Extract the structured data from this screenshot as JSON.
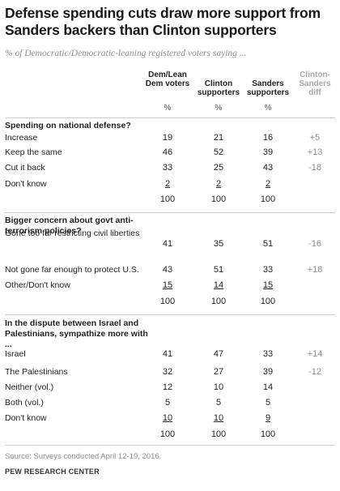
{
  "title": "Defense spending cuts draw more support from Sanders backers than Clinton supporters",
  "subtitle": "% of Democratic/Democratic-leaning registered voters saying ...",
  "columns": [
    {
      "label": "Dem/Lean Dem voters"
    },
    {
      "label": "Clinton supporters"
    },
    {
      "label": "Sanders supporters"
    },
    {
      "label": "Clinton-Sanders diff"
    }
  ],
  "pct_label": "%",
  "sections": [
    {
      "title": "Spending on national defense?",
      "rows": [
        {
          "label": "Increase",
          "values": [
            "19",
            "21",
            "16"
          ],
          "diff": "+5"
        },
        {
          "label": "Keep the same",
          "values": [
            "46",
            "52",
            "39"
          ],
          "diff": "+13"
        },
        {
          "label": "Cut it back",
          "values": [
            "33",
            "25",
            "43"
          ],
          "diff": "-18"
        },
        {
          "label": "Don't know",
          "values": [
            "2",
            "2",
            "2"
          ],
          "diff": ""
        }
      ],
      "total": [
        "100",
        "100",
        "100"
      ]
    },
    {
      "title": "Bigger concern about govt anti-terrorism policies?",
      "rows": [
        {
          "label": "Gone too far restricting civil liberties",
          "values": [
            "41",
            "35",
            "51"
          ],
          "diff": "-16"
        },
        {
          "label": "Not gone far enough to protect U.S.",
          "values": [
            "43",
            "51",
            "33"
          ],
          "diff": "+18"
        },
        {
          "label": "Other/Don't know",
          "values": [
            "15",
            "14",
            "15"
          ],
          "diff": ""
        }
      ],
      "total": [
        "100",
        "100",
        "100"
      ]
    },
    {
      "title": "In the dispute between Israel and Palestinians, sympathize more with ...",
      "rows": [
        {
          "label": "Israel",
          "values": [
            "41",
            "47",
            "33"
          ],
          "diff": "+14"
        },
        {
          "label": "The Palestinians",
          "values": [
            "32",
            "27",
            "39"
          ],
          "diff": "-12"
        },
        {
          "label": "Neither (vol.)",
          "values": [
            "12",
            "10",
            "14"
          ],
          "diff": ""
        },
        {
          "label": "Both (vol.)",
          "values": [
            "5",
            "5",
            "5"
          ],
          "diff": ""
        },
        {
          "label": "Don't know",
          "values": [
            "10",
            "10",
            "9"
          ],
          "diff": ""
        }
      ],
      "total": [
        "100",
        "100",
        "100"
      ]
    }
  ],
  "source": "Source: Surveys conducted April 12-19, 2016.",
  "organization": "PEW RESEARCH CENTER",
  "colors": {
    "diff_header": "#a8a8a8",
    "diff_values": "#8c8c8c",
    "rule": "#cfcfcf"
  },
  "chart_data": {
    "type": "table",
    "title": "Defense spending cuts draw more support from Sanders backers than Clinton supporters",
    "subtitle": "% of Democratic/Democratic-leaning registered voters saying ...",
    "columns": [
      "Dem/Lean Dem voters",
      "Clinton supporters",
      "Sanders supporters",
      "Clinton-Sanders diff"
    ],
    "rows": [
      {
        "group": "Spending on national defense?",
        "label": "Increase",
        "values": [
          19,
          21,
          16
        ],
        "diff": 5
      },
      {
        "group": "Spending on national defense?",
        "label": "Keep the same",
        "values": [
          46,
          52,
          39
        ],
        "diff": 13
      },
      {
        "group": "Spending on national defense?",
        "label": "Cut it back",
        "values": [
          33,
          25,
          43
        ],
        "diff": -18
      },
      {
        "group": "Spending on national defense?",
        "label": "Don't know",
        "values": [
          2,
          2,
          2
        ],
        "diff": null
      },
      {
        "group": "Bigger concern about govt anti-terrorism policies?",
        "label": "Gone too far restricting civil liberties",
        "values": [
          41,
          35,
          51
        ],
        "diff": -16
      },
      {
        "group": "Bigger concern about govt anti-terrorism policies?",
        "label": "Not gone far enough to protect U.S.",
        "values": [
          43,
          51,
          33
        ],
        "diff": 18
      },
      {
        "group": "Bigger concern about govt anti-terrorism policies?",
        "label": "Other/Don't know",
        "values": [
          15,
          14,
          15
        ],
        "diff": null
      },
      {
        "group": "In the dispute between Israel and Palestinians, sympathize more with ...",
        "label": "Israel",
        "values": [
          41,
          47,
          33
        ],
        "diff": 14
      },
      {
        "group": "In the dispute between Israel and Palestinians, sympathize more with ...",
        "label": "The Palestinians",
        "values": [
          32,
          27,
          39
        ],
        "diff": -12
      },
      {
        "group": "In the dispute between Israel and Palestinians, sympathize more with ...",
        "label": "Neither (vol.)",
        "values": [
          12,
          10,
          14
        ],
        "diff": null
      },
      {
        "group": "In the dispute between Israel and Palestinians, sympathize more with ...",
        "label": "Both (vol.)",
        "values": [
          5,
          5,
          5
        ],
        "diff": null
      },
      {
        "group": "In the dispute between Israel and Palestinians, sympathize more with ...",
        "label": "Don't know",
        "values": [
          10,
          10,
          9
        ],
        "diff": null
      }
    ]
  }
}
